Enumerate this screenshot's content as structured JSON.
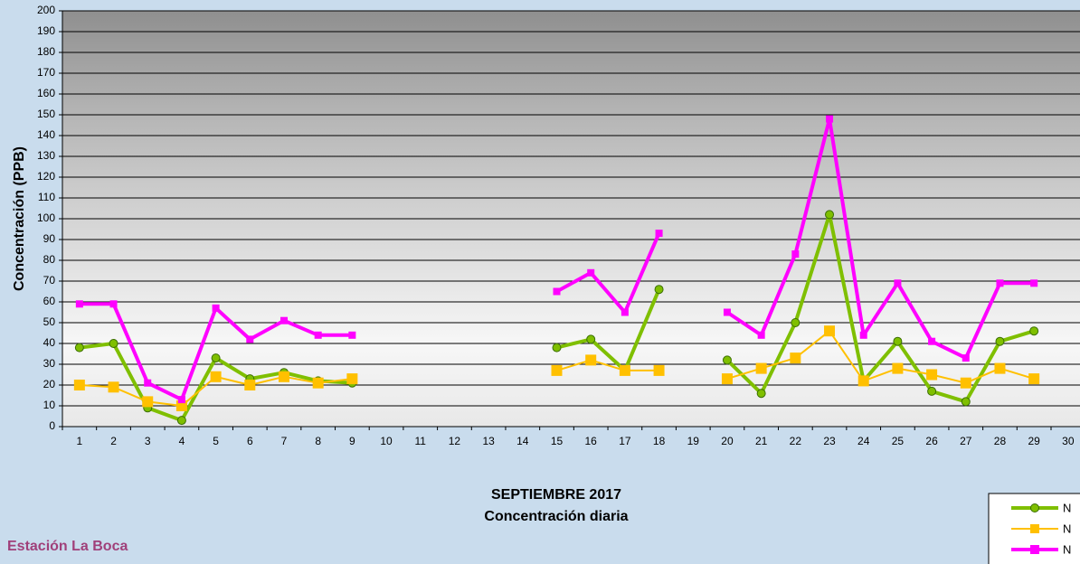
{
  "chart_data": {
    "type": "line",
    "title": "SEPTIEMBRE 2017",
    "subtitle": "Concentración diaria",
    "station": "Estación La Boca",
    "y_label": "Concentración  (PPB)",
    "categories": [
      "1",
      "2",
      "3",
      "4",
      "5",
      "6",
      "7",
      "8",
      "9",
      "10",
      "11",
      "12",
      "13",
      "14",
      "15",
      "16",
      "17",
      "18",
      "19",
      "20",
      "21",
      "22",
      "23",
      "24",
      "25",
      "26",
      "27",
      "28",
      "29",
      "30"
    ],
    "ylim": [
      0,
      200
    ],
    "yticks": [
      0,
      10,
      20,
      30,
      40,
      50,
      60,
      70,
      80,
      90,
      100,
      110,
      120,
      130,
      140,
      150,
      160,
      170,
      180,
      190,
      200
    ],
    "grid": true,
    "series": [
      {
        "name": "N",
        "color": "#7fbf00",
        "marker": "circle",
        "values": [
          38,
          40,
          9,
          3,
          33,
          23,
          26,
          22,
          21,
          null,
          null,
          null,
          null,
          null,
          38,
          42,
          27,
          66,
          null,
          32,
          16,
          50,
          102,
          22,
          41,
          17,
          12,
          41,
          46,
          null
        ]
      },
      {
        "name": "N",
        "color": "#ffc000",
        "marker": "square",
        "values": [
          20,
          19,
          12,
          10,
          24,
          20,
          24,
          21,
          23,
          null,
          null,
          null,
          null,
          null,
          27,
          32,
          27,
          27,
          null,
          23,
          28,
          33,
          46,
          22,
          28,
          25,
          21,
          28,
          23,
          null
        ]
      },
      {
        "name": "N",
        "color": "#ff00ff",
        "marker": "square",
        "values": [
          59,
          59,
          21,
          13,
          57,
          42,
          51,
          44,
          44,
          null,
          null,
          null,
          null,
          null,
          65,
          74,
          55,
          93,
          null,
          55,
          44,
          83,
          148,
          44,
          69,
          41,
          33,
          69,
          69,
          null
        ]
      }
    ]
  }
}
